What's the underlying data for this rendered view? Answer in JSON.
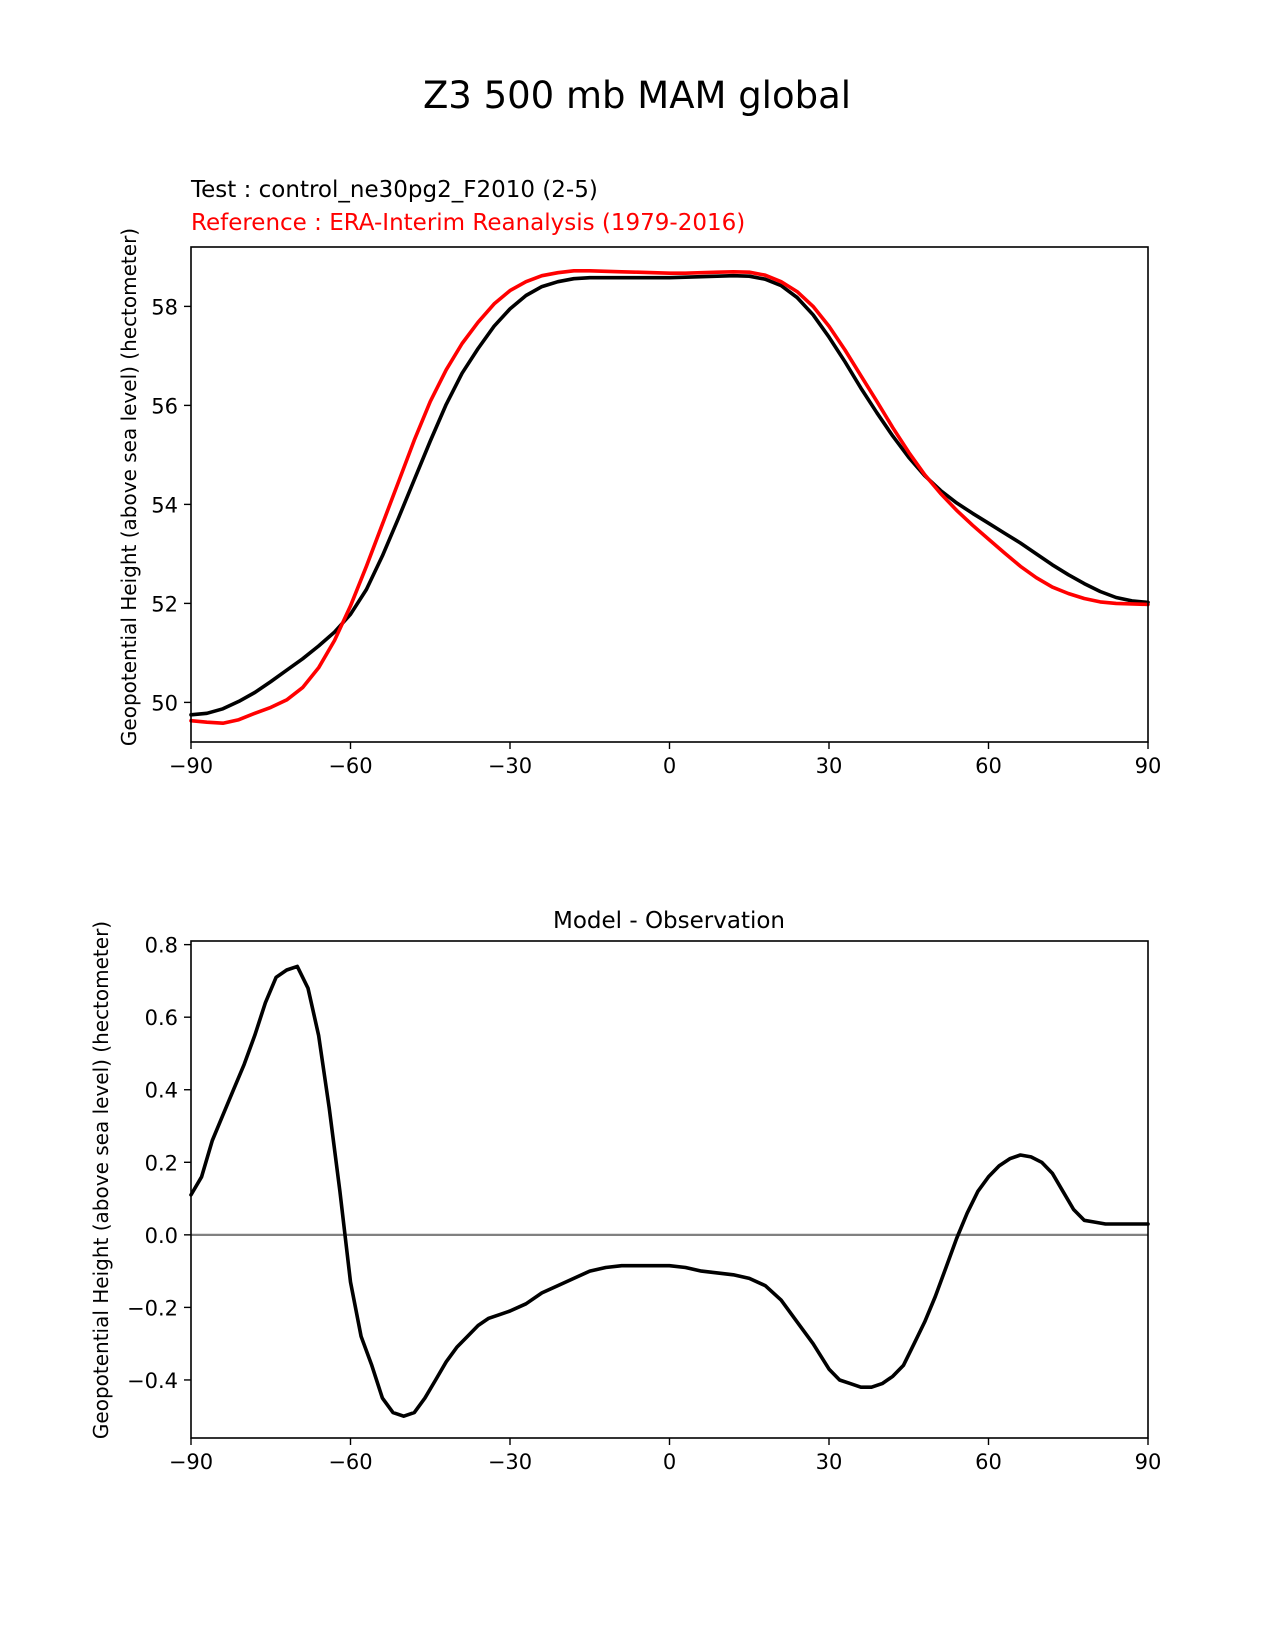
{
  "suptitle": "Z3 500 mb MAM global",
  "colors": {
    "test": "#000000",
    "reference": "#ff0000",
    "diff": "#000000",
    "zero_line": "#808080"
  },
  "chart_data": [
    {
      "type": "line",
      "test_label": "Test : control_ne30pg2_F2010 (2-5)",
      "reference_label": "Reference : ERA-Interim Reanalysis (1979-2016)",
      "ylabel": "Geopotential Height (above sea level) (hectometer)",
      "xlim": [
        -90,
        90
      ],
      "ylim": [
        49.2,
        59.2
      ],
      "xticks": [
        -90,
        -60,
        -30,
        0,
        30,
        60,
        90
      ],
      "xtick_labels": [
        "−90",
        "−60",
        "−30",
        "0",
        "30",
        "60",
        "90"
      ],
      "yticks": [
        50,
        52,
        54,
        56,
        58
      ],
      "ytick_labels": [
        "50",
        "52",
        "54",
        "56",
        "58"
      ],
      "series": [
        {
          "name": "Test",
          "x": [
            -90,
            -87,
            -84,
            -81,
            -78,
            -75,
            -72,
            -69,
            -66,
            -63,
            -60,
            -57,
            -54,
            -51,
            -48,
            -45,
            -42,
            -39,
            -36,
            -33,
            -30,
            -27,
            -24,
            -21,
            -18,
            -15,
            -12,
            -9,
            -6,
            -3,
            0,
            3,
            6,
            9,
            12,
            15,
            18,
            21,
            24,
            27,
            30,
            33,
            36,
            39,
            42,
            45,
            48,
            51,
            54,
            57,
            60,
            63,
            66,
            69,
            72,
            75,
            78,
            81,
            84,
            87,
            90
          ],
          "values": [
            49.75,
            49.78,
            49.87,
            50.02,
            50.2,
            50.42,
            50.65,
            50.88,
            51.14,
            51.42,
            51.78,
            52.28,
            52.96,
            53.72,
            54.5,
            55.28,
            56.02,
            56.65,
            57.15,
            57.6,
            57.95,
            58.22,
            58.4,
            58.5,
            58.56,
            58.58,
            58.58,
            58.58,
            58.58,
            58.58,
            58.58,
            58.59,
            58.6,
            58.61,
            58.62,
            58.61,
            58.55,
            58.42,
            58.18,
            57.83,
            57.38,
            56.88,
            56.35,
            55.85,
            55.38,
            54.95,
            54.58,
            54.28,
            54.03,
            53.82,
            53.62,
            53.42,
            53.22,
            53.0,
            52.78,
            52.58,
            52.4,
            52.24,
            52.12,
            52.05,
            52.02
          ]
        },
        {
          "name": "Reference",
          "x": [
            -90,
            -87,
            -84,
            -81,
            -78,
            -75,
            -72,
            -69,
            -66,
            -63,
            -60,
            -57,
            -54,
            -51,
            -48,
            -45,
            -42,
            -39,
            -36,
            -33,
            -30,
            -27,
            -24,
            -21,
            -18,
            -15,
            -12,
            -9,
            -6,
            -3,
            0,
            3,
            6,
            9,
            12,
            15,
            18,
            21,
            24,
            27,
            30,
            33,
            36,
            39,
            42,
            45,
            48,
            51,
            54,
            57,
            60,
            63,
            66,
            69,
            72,
            75,
            78,
            81,
            84,
            87,
            90
          ],
          "values": [
            49.63,
            49.6,
            49.58,
            49.65,
            49.78,
            49.9,
            50.05,
            50.3,
            50.7,
            51.25,
            51.95,
            52.75,
            53.6,
            54.45,
            55.3,
            56.08,
            56.72,
            57.25,
            57.68,
            58.05,
            58.32,
            58.5,
            58.62,
            58.68,
            58.72,
            58.72,
            58.71,
            58.7,
            58.69,
            58.68,
            58.67,
            58.67,
            58.68,
            58.69,
            58.7,
            58.69,
            58.63,
            58.5,
            58.3,
            58.0,
            57.6,
            57.12,
            56.6,
            56.08,
            55.55,
            55.05,
            54.6,
            54.22,
            53.88,
            53.58,
            53.3,
            53.02,
            52.75,
            52.52,
            52.33,
            52.2,
            52.1,
            52.03,
            52.0,
            51.99,
            51.98
          ]
        }
      ]
    },
    {
      "type": "line",
      "title": "Model - Observation",
      "ylabel": "Geopotential Height (above sea level) (hectometer)",
      "xlim": [
        -90,
        90
      ],
      "ylim": [
        -0.56,
        0.81
      ],
      "xticks": [
        -90,
        -60,
        -30,
        0,
        30,
        60,
        90
      ],
      "xtick_labels": [
        "−90",
        "−60",
        "−30",
        "0",
        "30",
        "60",
        "90"
      ],
      "yticks": [
        -0.4,
        -0.2,
        0.0,
        0.2,
        0.4,
        0.6,
        0.8
      ],
      "ytick_labels": [
        "−0.4",
        "−0.2",
        "0.0",
        "0.2",
        "0.4",
        "0.6",
        "0.8"
      ],
      "zero_line": 0.0,
      "series": [
        {
          "name": "Model - Observation",
          "x": [
            -90,
            -88,
            -86,
            -84,
            -82,
            -80,
            -78,
            -76,
            -74,
            -72,
            -70,
            -68,
            -66,
            -64,
            -62,
            -60,
            -58,
            -56,
            -54,
            -52,
            -50,
            -48,
            -46,
            -44,
            -42,
            -40,
            -38,
            -36,
            -34,
            -32,
            -30,
            -27,
            -24,
            -21,
            -18,
            -15,
            -12,
            -9,
            -6,
            -3,
            0,
            3,
            6,
            9,
            12,
            15,
            18,
            21,
            24,
            27,
            30,
            32,
            34,
            36,
            38,
            40,
            42,
            44,
            46,
            48,
            50,
            52,
            54,
            56,
            58,
            60,
            62,
            64,
            66,
            68,
            70,
            72,
            74,
            76,
            78,
            80,
            82,
            84,
            86,
            88,
            90
          ],
          "values": [
            0.11,
            0.16,
            0.26,
            0.33,
            0.4,
            0.47,
            0.55,
            0.64,
            0.71,
            0.73,
            0.74,
            0.68,
            0.55,
            0.35,
            0.12,
            -0.13,
            -0.28,
            -0.36,
            -0.45,
            -0.49,
            -0.5,
            -0.49,
            -0.45,
            -0.4,
            -0.35,
            -0.31,
            -0.28,
            -0.25,
            -0.23,
            -0.22,
            -0.21,
            -0.19,
            -0.16,
            -0.14,
            -0.12,
            -0.1,
            -0.09,
            -0.085,
            -0.085,
            -0.085,
            -0.085,
            -0.09,
            -0.1,
            -0.105,
            -0.11,
            -0.12,
            -0.14,
            -0.18,
            -0.24,
            -0.3,
            -0.37,
            -0.4,
            -0.41,
            -0.42,
            -0.42,
            -0.41,
            -0.39,
            -0.36,
            -0.3,
            -0.24,
            -0.17,
            -0.09,
            -0.01,
            0.06,
            0.12,
            0.16,
            0.19,
            0.21,
            0.22,
            0.215,
            0.2,
            0.17,
            0.12,
            0.07,
            0.04,
            0.035,
            0.03,
            0.03,
            0.03,
            0.03,
            0.03
          ]
        }
      ]
    }
  ]
}
